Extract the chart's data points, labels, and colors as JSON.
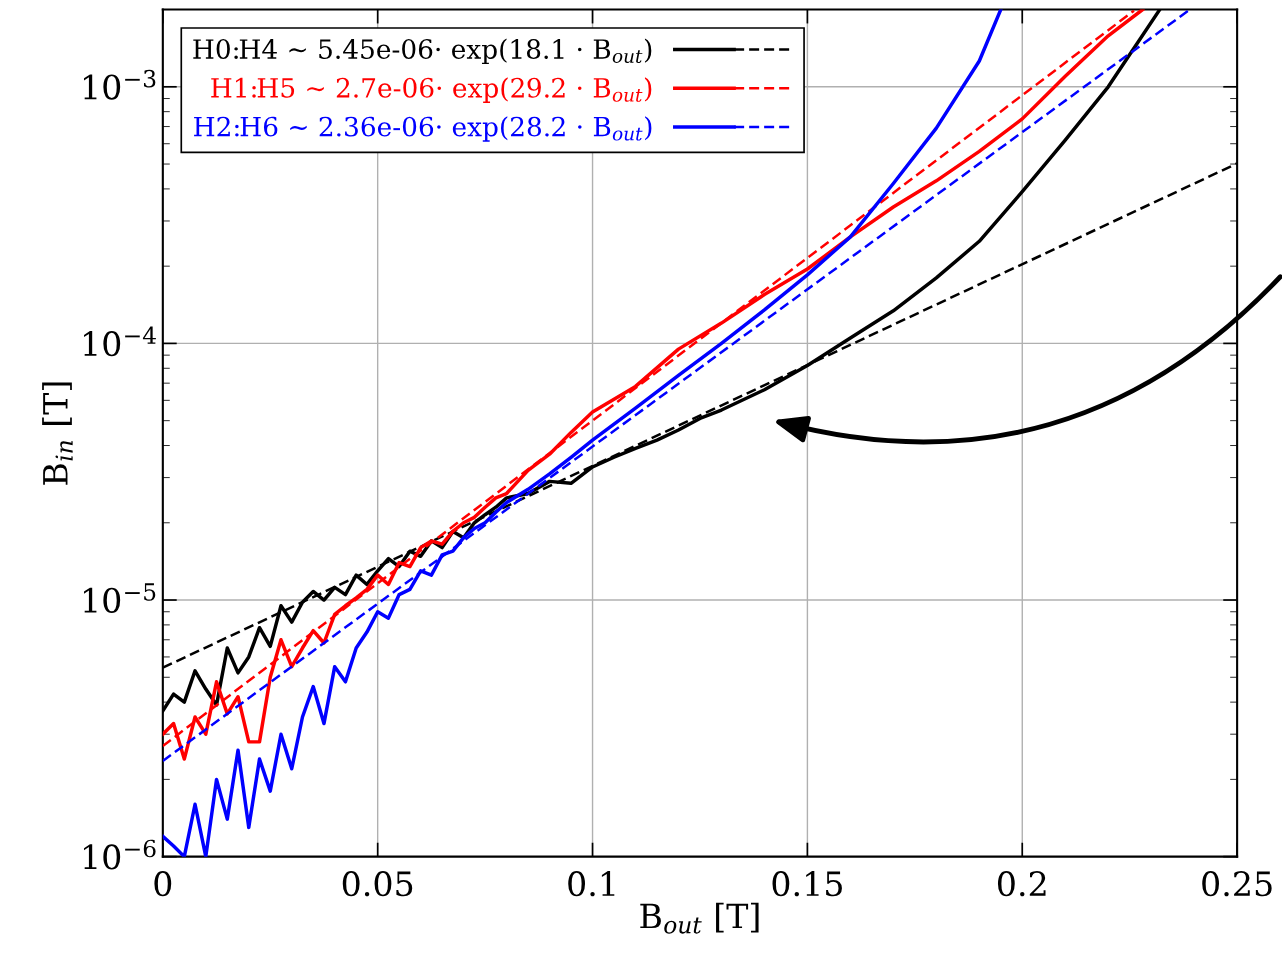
{
  "chart_data": {
    "type": "line",
    "xlabel": "B$_{out}$ [T]",
    "ylabel": "B$_{in}$ [T]",
    "log": "y",
    "grid": true,
    "legend": "top left",
    "xlim": [
      0,
      0.25
    ],
    "xticks": [
      0,
      0.05,
      0.1,
      0.15,
      0.2,
      0.25
    ],
    "ylim": [
      1e-06,
      0.002
    ],
    "yticks": [
      {
        "value": 1e-06,
        "label": "10$^{−6}$"
      },
      {
        "value": 1e-05,
        "label": "10$^{−5}$"
      },
      {
        "value": 0.0001,
        "label": "10$^{−4}$"
      },
      {
        "value": 0.001,
        "label": "10$^{−3}$"
      }
    ],
    "series": [
      {
        "name": "H0:H4 ∼ 5.45e-06· exp(18.1 · B$_{out}$)",
        "color": "#000000",
        "line_style": "solid",
        "x": [
          0,
          0.0025,
          0.005,
          0.0075,
          0.01,
          0.0125,
          0.015,
          0.0175,
          0.02,
          0.0225,
          0.025,
          0.0275,
          0.03,
          0.0325,
          0.035,
          0.0375,
          0.04,
          0.0425,
          0.045,
          0.0475,
          0.05,
          0.0525,
          0.055,
          0.0575,
          0.06,
          0.0625,
          0.065,
          0.0675,
          0.07,
          0.0725,
          0.075,
          0.0775,
          0.08,
          0.085,
          0.09,
          0.095,
          0.1,
          0.105,
          0.11,
          0.115,
          0.12,
          0.125,
          0.13,
          0.14,
          0.15,
          0.16,
          0.17,
          0.18,
          0.19,
          0.2,
          0.21,
          0.22,
          0.232
        ],
        "values": [
          3.7e-06,
          4.3e-06,
          4e-06,
          5.3e-06,
          4.5e-06,
          3.9e-06,
          6.5e-06,
          5.2e-06,
          6e-06,
          7.8e-06,
          6.6e-06,
          9.5e-06,
          8.2e-06,
          9.8e-06,
          1.08e-05,
          1e-05,
          1.12e-05,
          1.05e-05,
          1.25e-05,
          1.15e-05,
          1.3e-05,
          1.45e-05,
          1.35e-05,
          1.55e-05,
          1.48e-05,
          1.7e-05,
          1.6e-05,
          1.85e-05,
          1.75e-05,
          2e-05,
          2.15e-05,
          2.3e-05,
          2.5e-05,
          2.6e-05,
          2.9e-05,
          2.85e-05,
          3.3e-05,
          3.6e-05,
          3.9e-05,
          4.2e-05,
          4.6e-05,
          5.1e-05,
          5.5e-05,
          6.6e-05,
          8.2e-05,
          0.000105,
          0.000134,
          0.00018,
          0.00025,
          0.00039,
          0.00062,
          0.001,
          0.002
        ]
      },
      {
        "color": "#000000",
        "line_style": "dashed",
        "x": [
          0,
          0.25
        ],
        "values": [
          5.45e-06,
          0.000503
        ]
      },
      {
        "name": "H1:H5 ∼ 2.7e-06· exp(29.2 · B$_{out}$)",
        "color": "#ff0000",
        "line_style": "solid",
        "x": [
          0,
          0.0025,
          0.005,
          0.0075,
          0.01,
          0.0125,
          0.015,
          0.0175,
          0.02,
          0.0225,
          0.025,
          0.0275,
          0.03,
          0.0325,
          0.035,
          0.0375,
          0.04,
          0.0425,
          0.045,
          0.0475,
          0.05,
          0.0525,
          0.055,
          0.0575,
          0.06,
          0.0625,
          0.065,
          0.0675,
          0.07,
          0.0725,
          0.075,
          0.0775,
          0.08,
          0.085,
          0.09,
          0.095,
          0.1,
          0.11,
          0.12,
          0.13,
          0.14,
          0.15,
          0.16,
          0.17,
          0.18,
          0.19,
          0.2,
          0.21,
          0.22,
          0.228
        ],
        "values": [
          3e-06,
          3.3e-06,
          2.4e-06,
          3.5e-06,
          3e-06,
          4.8e-06,
          3.6e-06,
          4.2e-06,
          2.8e-06,
          2.8e-06,
          5e-06,
          7e-06,
          5.5e-06,
          6.5e-06,
          7.6e-06,
          6.8e-06,
          8.8e-06,
          9.5e-06,
          1.02e-05,
          1.1e-05,
          1.25e-05,
          1.15e-05,
          1.4e-05,
          1.35e-05,
          1.6e-05,
          1.7e-05,
          1.65e-05,
          1.85e-05,
          2e-05,
          2.1e-05,
          2.3e-05,
          2.5e-05,
          2.6e-05,
          3.2e-05,
          3.7e-05,
          4.5e-05,
          5.4e-05,
          6.8e-05,
          9.5e-05,
          0.00012,
          0.000155,
          0.000195,
          0.00026,
          0.00034,
          0.00043,
          0.00056,
          0.00075,
          0.0011,
          0.00158,
          0.002
        ]
      },
      {
        "color": "#ff0000",
        "line_style": "dashed",
        "x": [
          0,
          0.226
        ],
        "values": [
          2.7e-06,
          0.00198
        ]
      },
      {
        "name": "H2:H6 ∼ 2.36e-06· exp(28.2 · B$_{out}$)",
        "color": "#0000ff",
        "line_style": "solid",
        "x": [
          0,
          0.0025,
          0.005,
          0.0075,
          0.01,
          0.0125,
          0.015,
          0.0175,
          0.02,
          0.0225,
          0.025,
          0.0275,
          0.03,
          0.0325,
          0.035,
          0.0375,
          0.04,
          0.0425,
          0.045,
          0.0475,
          0.05,
          0.0525,
          0.055,
          0.0575,
          0.06,
          0.0625,
          0.065,
          0.0675,
          0.07,
          0.0725,
          0.075,
          0.0775,
          0.08,
          0.085,
          0.09,
          0.095,
          0.1,
          0.11,
          0.12,
          0.13,
          0.14,
          0.15,
          0.16,
          0.17,
          0.18,
          0.19,
          0.195
        ],
        "values": [
          1.2e-06,
          1.1e-06,
          1e-06,
          1.6e-06,
          1e-06,
          2e-06,
          1.4e-06,
          2.6e-06,
          1.3e-06,
          2.4e-06,
          1.8e-06,
          3e-06,
          2.2e-06,
          3.5e-06,
          4.6e-06,
          3.3e-06,
          5.5e-06,
          4.8e-06,
          6.5e-06,
          7.5e-06,
          9e-06,
          8.5e-06,
          1.05e-05,
          1.1e-05,
          1.3e-05,
          1.25e-05,
          1.5e-05,
          1.55e-05,
          1.75e-05,
          1.9e-05,
          2e-05,
          2.2e-05,
          2.4e-05,
          2.7e-05,
          3.1e-05,
          3.6e-05,
          4.2e-05,
          5.6e-05,
          7.5e-05,
          0.0001,
          0.000135,
          0.000185,
          0.00026,
          0.00042,
          0.00069,
          0.00126,
          0.002
        ]
      },
      {
        "color": "#0000ff",
        "line_style": "dashed",
        "x": [
          0,
          0.239
        ],
        "values": [
          2.36e-06,
          0.002
        ]
      }
    ]
  }
}
